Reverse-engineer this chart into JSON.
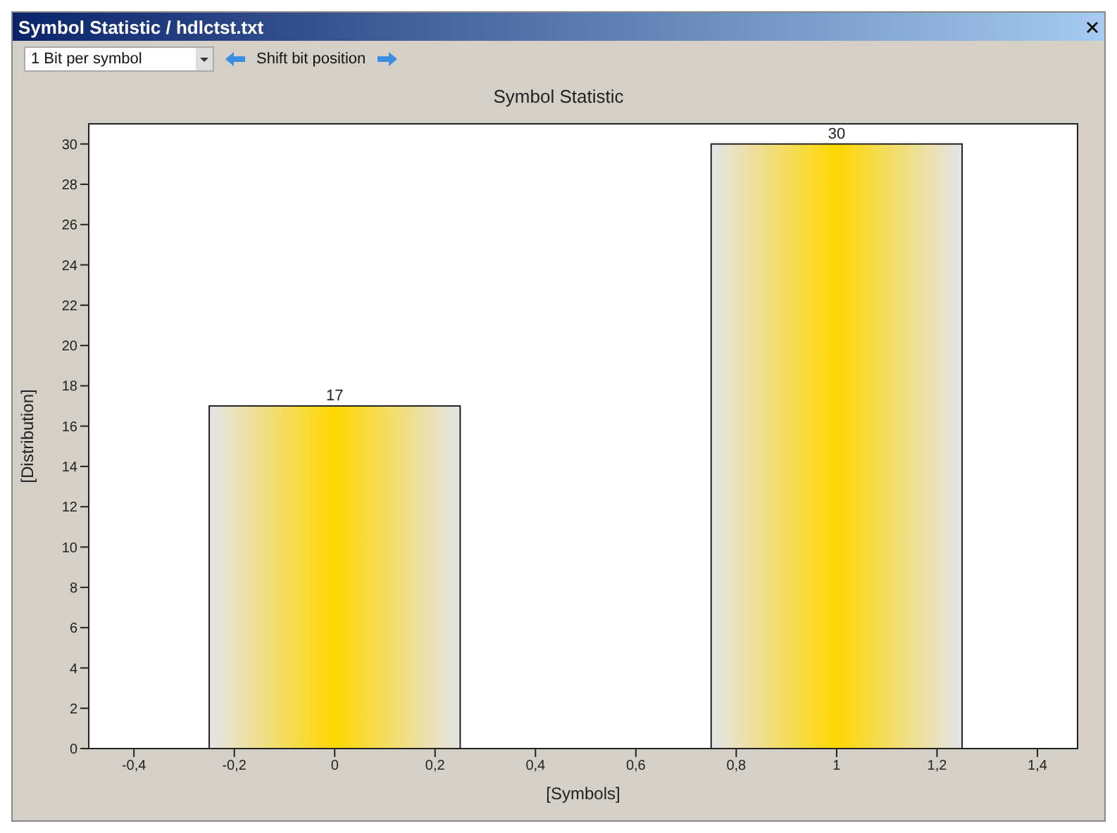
{
  "chart_data": {
    "type": "bar",
    "title": "Symbol Statistic",
    "xlabel": "[Symbols]",
    "ylabel": "[Distribution]",
    "annotations": [
      "Symbol Statistic / hdlctst.txt",
      "1 Bit per symbol",
      "Shift bit position"
    ],
    "x": [
      0,
      1
    ],
    "values": [
      17,
      30
    ],
    "color": "#ffd700",
    "data_labels": true,
    "xlim": [
      -0.49,
      1.48
    ],
    "xticks": [
      {
        "value": -0.4,
        "label": "-0,4"
      },
      {
        "value": -0.2,
        "label": "-0,2"
      },
      0,
      {
        "value": 0.2,
        "label": "0,2"
      },
      {
        "value": 0.4,
        "label": "0,4"
      },
      {
        "value": 0.6,
        "label": "0,6"
      },
      {
        "value": 0.8,
        "label": "0,8"
      },
      1,
      {
        "value": 1.2,
        "label": "1,2"
      },
      {
        "value": 1.4,
        "label": "1,4"
      }
    ],
    "ylim": [
      0,
      31
    ],
    "yticks": [
      0,
      2,
      4,
      6,
      8,
      10,
      12,
      14,
      16,
      18,
      20,
      22,
      24,
      26,
      28,
      30
    ]
  }
}
